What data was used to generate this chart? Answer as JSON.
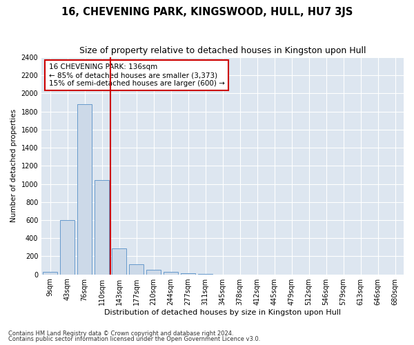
{
  "title": "16, CHEVENING PARK, KINGSWOOD, HULL, HU7 3JS",
  "subtitle": "Size of property relative to detached houses in Kingston upon Hull",
  "xlabel": "Distribution of detached houses by size in Kingston upon Hull",
  "ylabel": "Number of detached properties",
  "footnote1": "Contains HM Land Registry data © Crown copyright and database right 2024.",
  "footnote2": "Contains public sector information licensed under the Open Government Licence v3.0.",
  "categories": [
    "9sqm",
    "43sqm",
    "76sqm",
    "110sqm",
    "143sqm",
    "177sqm",
    "210sqm",
    "244sqm",
    "277sqm",
    "311sqm",
    "345sqm",
    "378sqm",
    "412sqm",
    "445sqm",
    "479sqm",
    "512sqm",
    "546sqm",
    "579sqm",
    "613sqm",
    "646sqm",
    "680sqm"
  ],
  "values": [
    25,
    600,
    1880,
    1040,
    290,
    110,
    50,
    25,
    15,
    5,
    0,
    0,
    0,
    0,
    0,
    0,
    0,
    0,
    0,
    0,
    0
  ],
  "bar_color": "#ccd9e8",
  "bar_edge_color": "#6699cc",
  "vline_position": 3.5,
  "vline_color": "#cc0000",
  "annotation_line1": "16 CHEVENING PARK: 136sqm",
  "annotation_line2": "← 85% of detached houses are smaller (3,373)",
  "annotation_line3": "15% of semi-detached houses are larger (600) →",
  "annotation_box_facecolor": "#ffffff",
  "annotation_box_edgecolor": "#cc0000",
  "ylim": [
    0,
    2400
  ],
  "yticks": [
    0,
    200,
    400,
    600,
    800,
    1000,
    1200,
    1400,
    1600,
    1800,
    2000,
    2200,
    2400
  ],
  "background_color": "#dde6f0",
  "grid_color": "#ffffff",
  "figure_facecolor": "#ffffff",
  "title_fontsize": 10.5,
  "subtitle_fontsize": 9,
  "xlabel_fontsize": 8,
  "ylabel_fontsize": 7.5,
  "tick_fontsize": 7,
  "annotation_fontsize": 7.5,
  "footnote_fontsize": 6
}
